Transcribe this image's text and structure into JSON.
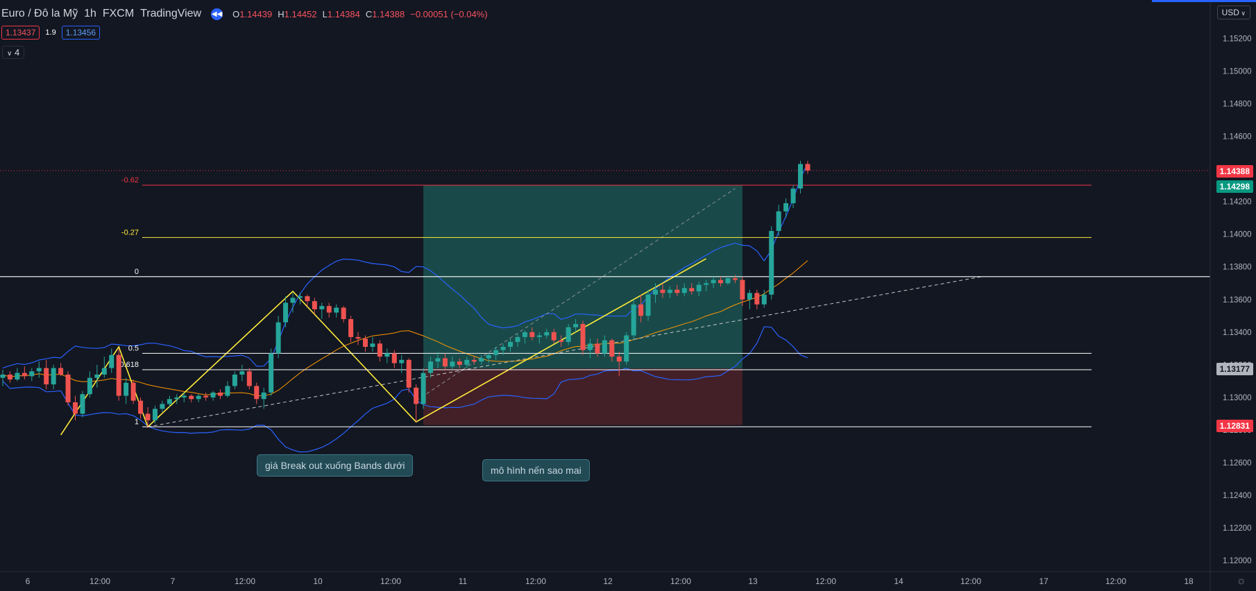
{
  "header": {
    "symbol": "Euro / Đô la Mỹ",
    "interval": "1h",
    "exchange": "FXCM",
    "source": "TradingView",
    "open_label": "O",
    "open": "1.14439",
    "high_label": "H",
    "high": "1.14452",
    "low_label": "L",
    "low": "1.14384",
    "close_label": "C",
    "close": "1.14388",
    "change": "−0.00051 (−0.04%)"
  },
  "quote": {
    "bid": "1.13437",
    "spread": "1.9",
    "ask": "1.13456"
  },
  "indicator_toggle": {
    "label": "4"
  },
  "currency": "USD",
  "colors": {
    "background": "#131722",
    "up": "#26a69a",
    "down": "#ef5350",
    "bands": "#2962ff",
    "basis": "#ff9800",
    "pattern": "#ffeb3b",
    "target_zone": "#1b5350",
    "stop_zone": "#4c2228"
  },
  "annotations": [
    {
      "text": "giá Break out xuống Bands dưới"
    },
    {
      "text": "mô hình nến sao mai"
    }
  ],
  "badges": [
    {
      "value": "1.14388",
      "color": "#f23645",
      "text_color": "#ffffff"
    },
    {
      "value": "1.14298",
      "color": "#089981",
      "text_color": "#ffffff"
    },
    {
      "value": "1.13177",
      "color": "#b2b5be",
      "text_color": "#131722"
    },
    {
      "value": "1.12831",
      "color": "#f23645",
      "text_color": "#ffffff"
    }
  ],
  "chart_data": {
    "type": "candlestick",
    "y_ticks": [
      "1.15200",
      "1.15000",
      "1.14800",
      "1.14600",
      "1.14400",
      "1.14200",
      "1.14000",
      "1.13800",
      "1.13600",
      "1.13400",
      "1.13200",
      "1.13000",
      "1.12800",
      "1.12600",
      "1.12400",
      "1.12200",
      "1.12000"
    ],
    "ylim": [
      1.1195,
      1.1535
    ],
    "x_ticks": [
      "6",
      "12:00",
      "7",
      "12:00",
      "10",
      "12:00",
      "11",
      "12:00",
      "12",
      "12:00",
      "13",
      "12:00",
      "14",
      "12:00",
      "17",
      "12:00",
      "18"
    ],
    "bar_count": 136,
    "fib_levels": [
      {
        "label": "-0.62",
        "price": 1.143,
        "color": "#f23645"
      },
      {
        "label": "-0.27",
        "price": 1.1398,
        "color": "#ffeb3b"
      },
      {
        "label": "0",
        "price": 1.1374,
        "color": "#ffffff"
      },
      {
        "label": "0.5",
        "price": 1.1327,
        "color": "#ffffff"
      },
      {
        "label": "0.618",
        "price": 1.1317,
        "color": "#ffffff"
      },
      {
        "label": "1",
        "price": 1.1282,
        "color": "#ffffff"
      }
    ],
    "position": {
      "start_bar": 58,
      "end_bar": 102,
      "entry": 1.13177,
      "target": 1.14298,
      "stop": 1.12831
    },
    "zigzag": [
      {
        "bar": 8,
        "price": 1.1277
      },
      {
        "bar": 16,
        "price": 1.1331
      },
      {
        "bar": 20,
        "price": 1.1282
      },
      {
        "bar": 40,
        "price": 1.1365
      },
      {
        "bar": 57,
        "price": 1.1285
      },
      {
        "bar": 97,
        "price": 1.1385
      }
    ],
    "trendline_1": {
      "from": {
        "bar": 20,
        "price": 1.1282
      },
      "to": {
        "bar": 135,
        "price": 1.1374
      }
    },
    "trendline_2": {
      "from": {
        "bar": 57,
        "price": 1.1298
      },
      "to": {
        "bar": 101,
        "price": 1.1428
      }
    },
    "candles": [
      {
        "o": 1.1312,
        "h": 1.1317,
        "l": 1.1307,
        "c": 1.1314
      },
      {
        "o": 1.1314,
        "h": 1.1316,
        "l": 1.1309,
        "c": 1.1311
      },
      {
        "o": 1.1311,
        "h": 1.1318,
        "l": 1.131,
        "c": 1.1315
      },
      {
        "o": 1.1315,
        "h": 1.1319,
        "l": 1.1311,
        "c": 1.1313
      },
      {
        "o": 1.1313,
        "h": 1.1318,
        "l": 1.131,
        "c": 1.1316
      },
      {
        "o": 1.1316,
        "h": 1.1322,
        "l": 1.1312,
        "c": 1.1318
      },
      {
        "o": 1.1318,
        "h": 1.1323,
        "l": 1.1305,
        "c": 1.1308
      },
      {
        "o": 1.1308,
        "h": 1.132,
        "l": 1.1305,
        "c": 1.1318
      },
      {
        "o": 1.1318,
        "h": 1.1321,
        "l": 1.1313,
        "c": 1.1314
      },
      {
        "o": 1.1314,
        "h": 1.1316,
        "l": 1.1295,
        "c": 1.1297
      },
      {
        "o": 1.1297,
        "h": 1.1301,
        "l": 1.1286,
        "c": 1.129
      },
      {
        "o": 1.129,
        "h": 1.1304,
        "l": 1.1288,
        "c": 1.1302
      },
      {
        "o": 1.1302,
        "h": 1.1316,
        "l": 1.13,
        "c": 1.1312
      },
      {
        "o": 1.1312,
        "h": 1.132,
        "l": 1.1306,
        "c": 1.1314
      },
      {
        "o": 1.1314,
        "h": 1.1325,
        "l": 1.1312,
        "c": 1.1318
      },
      {
        "o": 1.1318,
        "h": 1.133,
        "l": 1.1315,
        "c": 1.1326
      },
      {
        "o": 1.1326,
        "h": 1.133,
        "l": 1.1298,
        "c": 1.1301
      },
      {
        "o": 1.1301,
        "h": 1.1312,
        "l": 1.1296,
        "c": 1.1309
      },
      {
        "o": 1.1309,
        "h": 1.1311,
        "l": 1.1296,
        "c": 1.1298
      },
      {
        "o": 1.1298,
        "h": 1.13,
        "l": 1.1287,
        "c": 1.129
      },
      {
        "o": 1.129,
        "h": 1.1294,
        "l": 1.1282,
        "c": 1.1286
      },
      {
        "o": 1.1286,
        "h": 1.1295,
        "l": 1.1284,
        "c": 1.1293
      },
      {
        "o": 1.1293,
        "h": 1.1298,
        "l": 1.1291,
        "c": 1.1296
      },
      {
        "o": 1.1296,
        "h": 1.1301,
        "l": 1.1294,
        "c": 1.1299
      },
      {
        "o": 1.1299,
        "h": 1.1302,
        "l": 1.1296,
        "c": 1.13
      },
      {
        "o": 1.13,
        "h": 1.1303,
        "l": 1.1297,
        "c": 1.1301
      },
      {
        "o": 1.1301,
        "h": 1.1302,
        "l": 1.1297,
        "c": 1.1299
      },
      {
        "o": 1.1299,
        "h": 1.1302,
        "l": 1.1297,
        "c": 1.1301
      },
      {
        "o": 1.1301,
        "h": 1.1303,
        "l": 1.1298,
        "c": 1.13
      },
      {
        "o": 1.13,
        "h": 1.1304,
        "l": 1.1298,
        "c": 1.1303
      },
      {
        "o": 1.1303,
        "h": 1.1305,
        "l": 1.1299,
        "c": 1.1301
      },
      {
        "o": 1.1301,
        "h": 1.131,
        "l": 1.13,
        "c": 1.1307
      },
      {
        "o": 1.1307,
        "h": 1.1316,
        "l": 1.1305,
        "c": 1.1314
      },
      {
        "o": 1.1314,
        "h": 1.132,
        "l": 1.131,
        "c": 1.1316
      },
      {
        "o": 1.1316,
        "h": 1.1318,
        "l": 1.1305,
        "c": 1.1307
      },
      {
        "o": 1.1307,
        "h": 1.1309,
        "l": 1.1296,
        "c": 1.1299
      },
      {
        "o": 1.1299,
        "h": 1.1306,
        "l": 1.1293,
        "c": 1.1303
      },
      {
        "o": 1.1303,
        "h": 1.133,
        "l": 1.1301,
        "c": 1.1327
      },
      {
        "o": 1.1327,
        "h": 1.135,
        "l": 1.1324,
        "c": 1.1346
      },
      {
        "o": 1.1346,
        "h": 1.1362,
        "l": 1.1343,
        "c": 1.1358
      },
      {
        "o": 1.1358,
        "h": 1.1364,
        "l": 1.1352,
        "c": 1.1361
      },
      {
        "o": 1.1361,
        "h": 1.1364,
        "l": 1.1357,
        "c": 1.1362
      },
      {
        "o": 1.1362,
        "h": 1.1363,
        "l": 1.1356,
        "c": 1.1359
      },
      {
        "o": 1.1359,
        "h": 1.1361,
        "l": 1.1351,
        "c": 1.1354
      },
      {
        "o": 1.1354,
        "h": 1.1358,
        "l": 1.1348,
        "c": 1.1356
      },
      {
        "o": 1.1356,
        "h": 1.1358,
        "l": 1.1349,
        "c": 1.1352
      },
      {
        "o": 1.1352,
        "h": 1.1357,
        "l": 1.1349,
        "c": 1.1355
      },
      {
        "o": 1.1355,
        "h": 1.1356,
        "l": 1.1346,
        "c": 1.1348
      },
      {
        "o": 1.1348,
        "h": 1.135,
        "l": 1.1334,
        "c": 1.1337
      },
      {
        "o": 1.1337,
        "h": 1.134,
        "l": 1.1332,
        "c": 1.1336
      },
      {
        "o": 1.1336,
        "h": 1.1338,
        "l": 1.1328,
        "c": 1.1331
      },
      {
        "o": 1.1331,
        "h": 1.1337,
        "l": 1.1328,
        "c": 1.1333
      },
      {
        "o": 1.1333,
        "h": 1.1335,
        "l": 1.1322,
        "c": 1.1325
      },
      {
        "o": 1.1325,
        "h": 1.133,
        "l": 1.1321,
        "c": 1.1327
      },
      {
        "o": 1.1327,
        "h": 1.1329,
        "l": 1.1318,
        "c": 1.1321
      },
      {
        "o": 1.1321,
        "h": 1.1326,
        "l": 1.1315,
        "c": 1.1323
      },
      {
        "o": 1.1323,
        "h": 1.1324,
        "l": 1.1303,
        "c": 1.1306
      },
      {
        "o": 1.1306,
        "h": 1.1308,
        "l": 1.1285,
        "c": 1.1296
      },
      {
        "o": 1.1296,
        "h": 1.1318,
        "l": 1.1293,
        "c": 1.1315
      },
      {
        "o": 1.1315,
        "h": 1.1325,
        "l": 1.1312,
        "c": 1.1322
      },
      {
        "o": 1.1322,
        "h": 1.1328,
        "l": 1.1318,
        "c": 1.1324
      },
      {
        "o": 1.1324,
        "h": 1.1327,
        "l": 1.1317,
        "c": 1.1319
      },
      {
        "o": 1.1319,
        "h": 1.1325,
        "l": 1.1317,
        "c": 1.1322
      },
      {
        "o": 1.1322,
        "h": 1.1324,
        "l": 1.1318,
        "c": 1.132
      },
      {
        "o": 1.132,
        "h": 1.1325,
        "l": 1.1318,
        "c": 1.1323
      },
      {
        "o": 1.1323,
        "h": 1.1325,
        "l": 1.132,
        "c": 1.1322
      },
      {
        "o": 1.1322,
        "h": 1.1326,
        "l": 1.132,
        "c": 1.1324
      },
      {
        "o": 1.1324,
        "h": 1.1327,
        "l": 1.1321,
        "c": 1.1326
      },
      {
        "o": 1.1326,
        "h": 1.1331,
        "l": 1.1323,
        "c": 1.1329
      },
      {
        "o": 1.1329,
        "h": 1.1333,
        "l": 1.1326,
        "c": 1.1331
      },
      {
        "o": 1.1331,
        "h": 1.1336,
        "l": 1.1328,
        "c": 1.1334
      },
      {
        "o": 1.1334,
        "h": 1.1339,
        "l": 1.1331,
        "c": 1.1337
      },
      {
        "o": 1.1337,
        "h": 1.1341,
        "l": 1.1333,
        "c": 1.134
      },
      {
        "o": 1.134,
        "h": 1.1343,
        "l": 1.1335,
        "c": 1.1337
      },
      {
        "o": 1.1337,
        "h": 1.134,
        "l": 1.1333,
        "c": 1.1338
      },
      {
        "o": 1.1338,
        "h": 1.1342,
        "l": 1.1336,
        "c": 1.134
      },
      {
        "o": 1.134,
        "h": 1.1342,
        "l": 1.1333,
        "c": 1.1335
      },
      {
        "o": 1.1335,
        "h": 1.1338,
        "l": 1.1331,
        "c": 1.1334
      },
      {
        "o": 1.1334,
        "h": 1.1345,
        "l": 1.1332,
        "c": 1.1343
      },
      {
        "o": 1.1343,
        "h": 1.1348,
        "l": 1.134,
        "c": 1.1345
      },
      {
        "o": 1.1345,
        "h": 1.1347,
        "l": 1.1326,
        "c": 1.1329
      },
      {
        "o": 1.1329,
        "h": 1.1336,
        "l": 1.1324,
        "c": 1.1333
      },
      {
        "o": 1.1333,
        "h": 1.1336,
        "l": 1.1325,
        "c": 1.1327
      },
      {
        "o": 1.1327,
        "h": 1.1338,
        "l": 1.1325,
        "c": 1.1335
      },
      {
        "o": 1.1335,
        "h": 1.1336,
        "l": 1.1322,
        "c": 1.1325
      },
      {
        "o": 1.1325,
        "h": 1.1328,
        "l": 1.1313,
        "c": 1.1322
      },
      {
        "o": 1.1322,
        "h": 1.134,
        "l": 1.132,
        "c": 1.1338
      },
      {
        "o": 1.1338,
        "h": 1.136,
        "l": 1.1335,
        "c": 1.1357
      },
      {
        "o": 1.1357,
        "h": 1.1363,
        "l": 1.1346,
        "c": 1.135
      },
      {
        "o": 1.135,
        "h": 1.1366,
        "l": 1.1347,
        "c": 1.1363
      },
      {
        "o": 1.1363,
        "h": 1.137,
        "l": 1.1358,
        "c": 1.1366
      },
      {
        "o": 1.1366,
        "h": 1.137,
        "l": 1.1361,
        "c": 1.1364
      },
      {
        "o": 1.1364,
        "h": 1.1368,
        "l": 1.1361,
        "c": 1.1366
      },
      {
        "o": 1.1366,
        "h": 1.1369,
        "l": 1.1362,
        "c": 1.1364
      },
      {
        "o": 1.1364,
        "h": 1.137,
        "l": 1.1362,
        "c": 1.1367
      },
      {
        "o": 1.1367,
        "h": 1.137,
        "l": 1.1363,
        "c": 1.1365
      },
      {
        "o": 1.1365,
        "h": 1.1371,
        "l": 1.1362,
        "c": 1.1369
      },
      {
        "o": 1.1369,
        "h": 1.1372,
        "l": 1.1365,
        "c": 1.137
      },
      {
        "o": 1.137,
        "h": 1.1374,
        "l": 1.1367,
        "c": 1.1372
      },
      {
        "o": 1.1372,
        "h": 1.1374,
        "l": 1.1368,
        "c": 1.137
      },
      {
        "o": 1.137,
        "h": 1.1374,
        "l": 1.1369,
        "c": 1.1373
      },
      {
        "o": 1.1373,
        "h": 1.1375,
        "l": 1.137,
        "c": 1.1372
      },
      {
        "o": 1.1372,
        "h": 1.1374,
        "l": 1.1356,
        "c": 1.136
      },
      {
        "o": 1.136,
        "h": 1.1366,
        "l": 1.1354,
        "c": 1.1364
      },
      {
        "o": 1.1364,
        "h": 1.1366,
        "l": 1.1354,
        "c": 1.1357
      },
      {
        "o": 1.1357,
        "h": 1.1366,
        "l": 1.1355,
        "c": 1.1363
      },
      {
        "o": 1.1363,
        "h": 1.1405,
        "l": 1.136,
        "c": 1.1402
      },
      {
        "o": 1.1402,
        "h": 1.1418,
        "l": 1.1399,
        "c": 1.1414
      },
      {
        "o": 1.1414,
        "h": 1.1422,
        "l": 1.141,
        "c": 1.1419
      },
      {
        "o": 1.1419,
        "h": 1.143,
        "l": 1.1416,
        "c": 1.1428
      },
      {
        "o": 1.1428,
        "h": 1.1445,
        "l": 1.1425,
        "c": 1.1443
      },
      {
        "o": 1.1443,
        "h": 1.1445,
        "l": 1.1437,
        "c": 1.1439
      }
    ]
  }
}
